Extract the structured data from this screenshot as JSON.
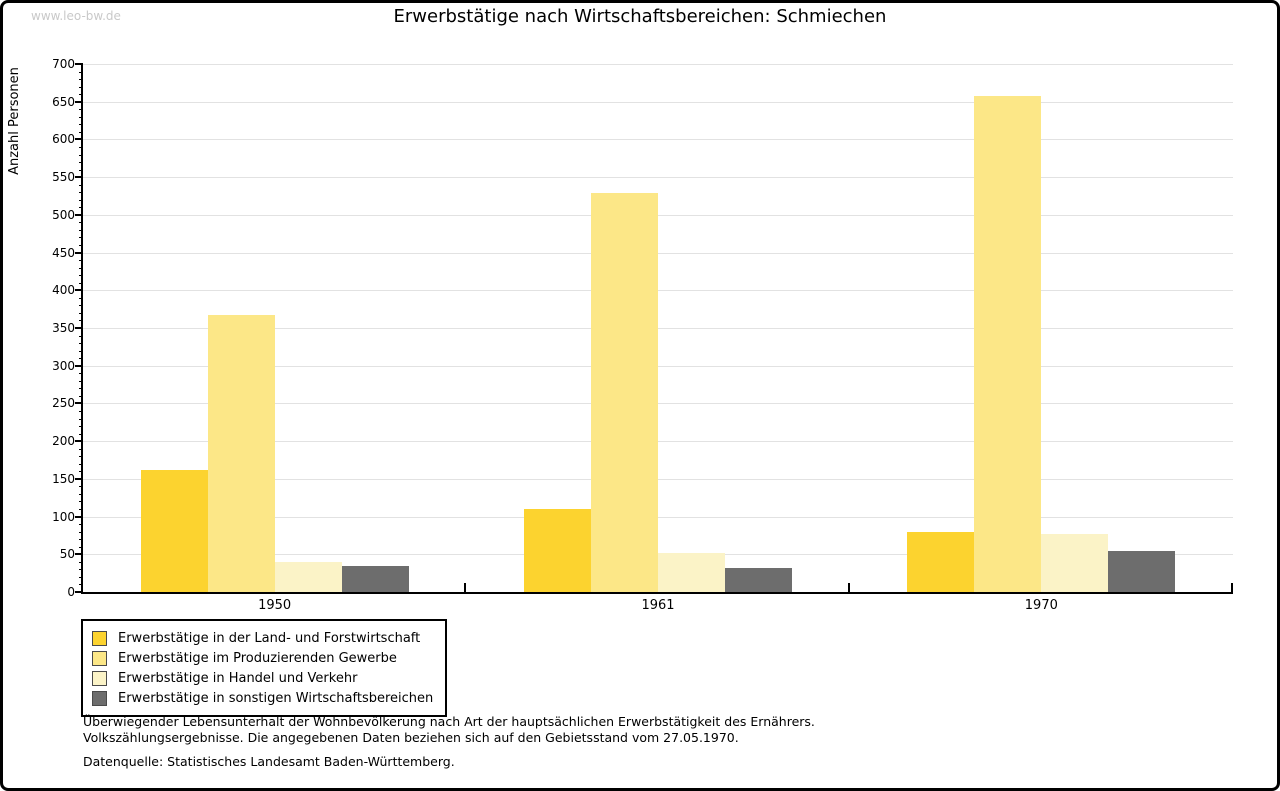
{
  "watermark": "www.leo-bw.de",
  "chart_data": {
    "type": "bar",
    "title": "Erwerbstätige nach Wirtschaftsbereichen: Schmiechen",
    "xlabel": "",
    "ylabel": "Anzahl Personen",
    "ylim": [
      0,
      700
    ],
    "ytick_step": 50,
    "yminor_step": 10,
    "grid": true,
    "legend_position": "bottom-left",
    "categories": [
      "1950",
      "1961",
      "1970"
    ],
    "series": [
      {
        "name": "Erwerbstätige in der Land- und Forstwirtschaft",
        "color": "#fcd32f",
        "values": [
          162,
          110,
          79
        ]
      },
      {
        "name": "Erwerbstätige im Produzierenden Gewerbe",
        "color": "#fce787",
        "values": [
          367,
          529,
          657
        ]
      },
      {
        "name": "Erwerbstätige in Handel und Verkehr",
        "color": "#fbf3c7",
        "values": [
          40,
          52,
          77
        ]
      },
      {
        "name": "Erwerbstätige in sonstigen Wirtschaftsbereichen",
        "color": "#6d6d6d",
        "values": [
          34,
          32,
          55
        ]
      }
    ]
  },
  "footnotes": {
    "line1": "Überwiegender Lebensunterhalt der Wohnbevölkerung nach Art der hauptsächlichen Erwerbstätigkeit des Ernährers.",
    "line2": "Volkszählungsergebnisse. Die angegebenen Daten beziehen sich auf den Gebietsstand vom 27.05.1970.",
    "source": "Datenquelle: Statistisches Landesamt Baden-Württemberg."
  }
}
